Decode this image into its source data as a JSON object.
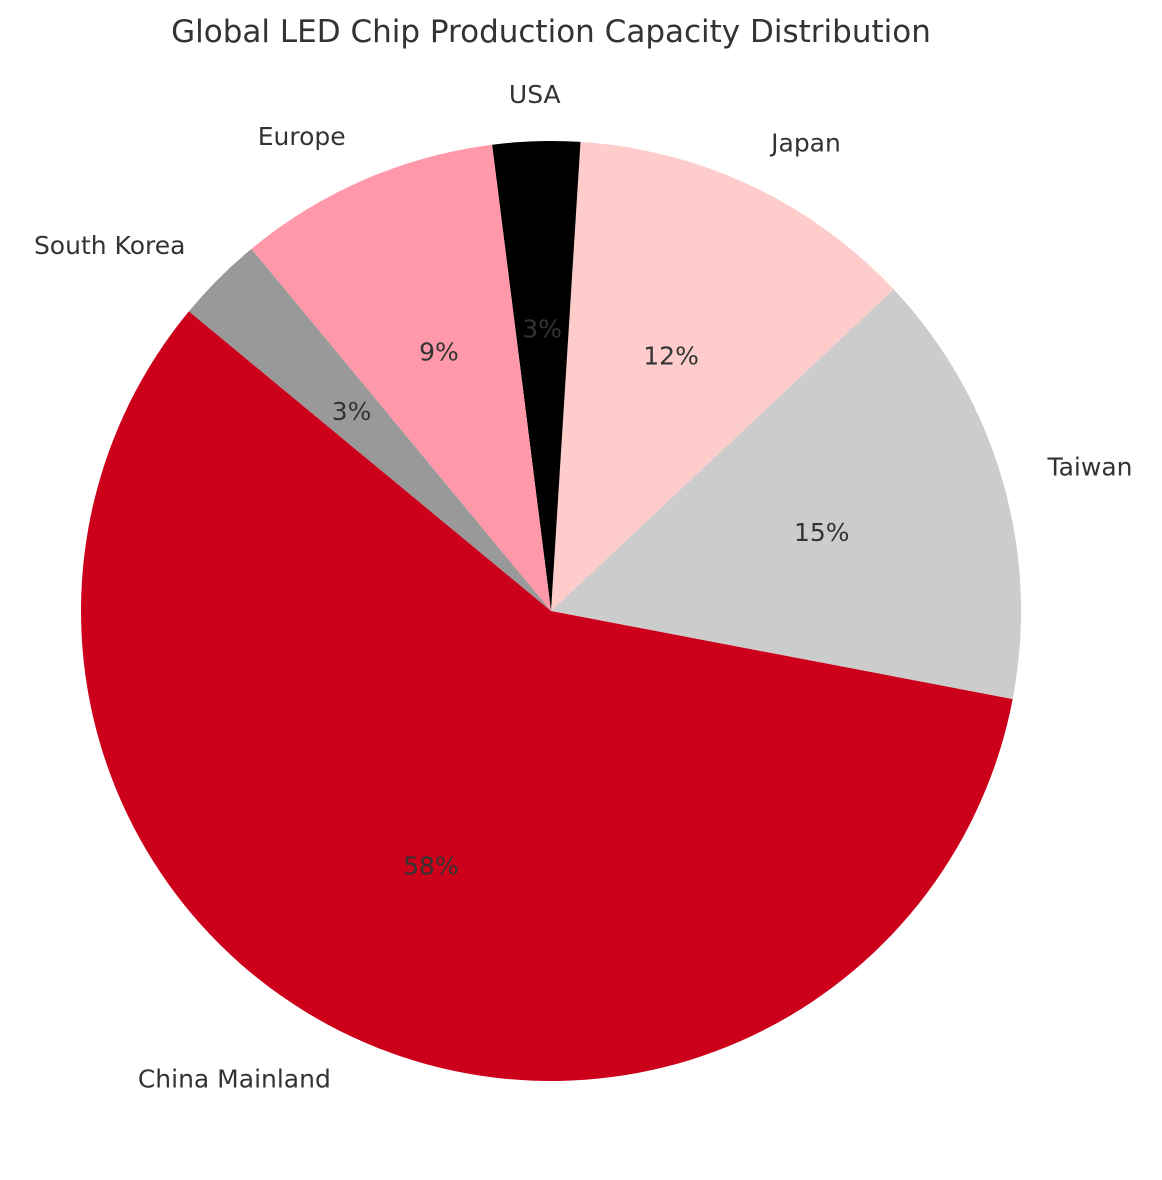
{
  "chart_data": {
    "type": "pie",
    "title": "Global LED Chip Production Capacity Distribution",
    "categories": [
      "Taiwan",
      "Japan",
      "USA",
      "Europe",
      "South Korea",
      "China Mainland"
    ],
    "values": [
      15,
      12,
      3,
      9,
      3,
      58
    ],
    "value_labels": [
      "15%",
      "12%",
      "3%",
      "9%",
      "3%",
      "58%"
    ],
    "colors": [
      "#cccccc",
      "#ffcccc",
      "#000000",
      "#ff99aa",
      "#999999",
      "#cc001a"
    ],
    "percent_label_colors": [
      "#333333",
      "#333333",
      "#444444",
      "#333333",
      "#333333",
      "#333333"
    ],
    "legend": "none"
  }
}
